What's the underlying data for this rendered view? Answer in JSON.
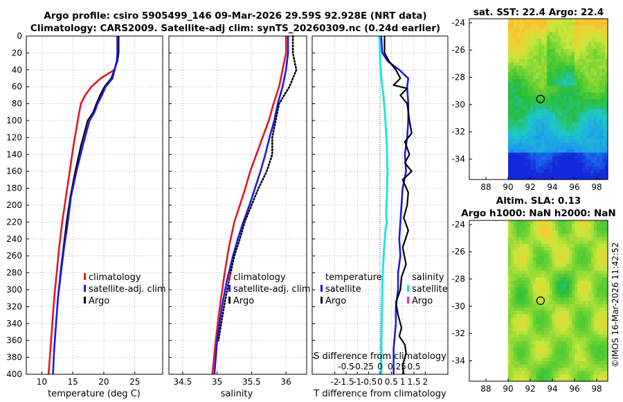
{
  "titles": {
    "line1": "Argo profile: csiro 5905499_146 09-Mar-2026 29.59S 92.928E (NRT data)",
    "line2": "Climatology: CARS2009. Satellite-adj clim: synTS_20260309.nc (0.24d earlier)"
  },
  "watermark": "©IMOS 16-Mar-2026 11:42:52",
  "colors": {
    "climatology": "#e8141e",
    "satellite": "#1a1ae6",
    "argo": "#000000",
    "sat_salinity": "#22e3e3",
    "argo_salinity": "#ee22cc"
  },
  "chart_data": [
    {
      "type": "line",
      "id": "temperature",
      "xlabel": "temperature (deg C)",
      "ylabel": "",
      "xlim": [
        7.5,
        29.5
      ],
      "ylim": [
        0,
        400
      ],
      "xticks": [
        10,
        15,
        20,
        25
      ],
      "yticks": [
        0,
        20,
        40,
        60,
        80,
        100,
        120,
        140,
        160,
        180,
        200,
        220,
        240,
        260,
        280,
        300,
        320,
        340,
        360,
        380,
        400
      ],
      "legend": [
        "climatology",
        "satellite-adj. clim",
        "Argo"
      ],
      "series": [
        {
          "name": "climatology",
          "color": "climatology",
          "dash": false,
          "x": [
            22.2,
            22.2,
            22.1,
            21.7,
            19.5,
            18.0,
            17.0,
            16.3,
            15.8,
            15.1,
            14.5,
            13.9,
            13.3,
            12.8,
            12.4,
            12.0,
            11.7,
            11.4,
            11.1
          ],
          "y": [
            0,
            20,
            30,
            40,
            50,
            60,
            70,
            80,
            100,
            130,
            160,
            190,
            220,
            250,
            280,
            310,
            340,
            370,
            400
          ]
        },
        {
          "name": "satellite-adj. clim",
          "color": "satellite",
          "dash": false,
          "x": [
            22.2,
            22.2,
            22.1,
            21.4,
            20.3,
            19.7,
            19.0,
            18.5,
            17.7,
            16.6,
            15.6,
            14.7,
            14.2,
            13.6,
            13.1,
            12.6,
            12.3,
            12.0,
            11.8
          ],
          "y": [
            0,
            20,
            30,
            50,
            60,
            70,
            80,
            90,
            100,
            130,
            160,
            190,
            220,
            250,
            280,
            310,
            340,
            370,
            400
          ]
        },
        {
          "name": "Argo",
          "color": "argo",
          "dash": false,
          "x": [
            22.4,
            22.4,
            22.2,
            21.2,
            20.1,
            19.4,
            18.8,
            18.3,
            17.4,
            16.3,
            15.4,
            14.6,
            14.0,
            13.5,
            13.0,
            12.6,
            12.3,
            12.0
          ],
          "y": [
            0,
            20,
            30,
            50,
            60,
            70,
            80,
            90,
            100,
            130,
            160,
            190,
            220,
            250,
            280,
            310,
            340,
            370
          ]
        }
      ]
    },
    {
      "type": "line",
      "id": "salinity",
      "xlabel": "salinity",
      "ylabel": "",
      "xlim": [
        34.3,
        36.3
      ],
      "ylim": [
        0,
        400
      ],
      "xticks": [
        34.5,
        35,
        35.5,
        36
      ],
      "xticklabels": [
        "34.5",
        "35",
        "35.5",
        "36"
      ],
      "yticks": [
        0,
        20,
        40,
        60,
        80,
        100,
        120,
        140,
        160,
        180,
        200,
        220,
        240,
        260,
        280,
        300,
        320,
        340,
        360,
        380,
        400
      ],
      "legend": [
        "climatology",
        "satellite-adj. clim",
        "Argo"
      ],
      "series": [
        {
          "name": "climatology",
          "color": "climatology",
          "dash": false,
          "x": [
            36.0,
            36.0,
            35.95,
            35.9,
            35.82,
            35.75,
            35.66,
            35.57,
            35.48,
            35.41,
            35.33,
            35.25,
            35.17,
            35.11,
            35.04,
            34.98,
            34.93
          ],
          "y": [
            0,
            20,
            40,
            60,
            80,
            100,
            120,
            140,
            160,
            180,
            200,
            220,
            250,
            280,
            320,
            360,
            400
          ]
        },
        {
          "name": "satellite-adj. clim",
          "color": "satellite",
          "dash": false,
          "x": [
            36.03,
            36.03,
            36.0,
            35.95,
            35.88,
            35.83,
            35.76,
            35.7,
            35.63,
            35.55,
            35.47,
            35.38,
            35.3,
            35.23,
            35.14,
            35.07,
            35.0,
            34.96
          ],
          "y": [
            0,
            20,
            40,
            60,
            80,
            100,
            120,
            140,
            160,
            180,
            200,
            220,
            240,
            260,
            290,
            320,
            360,
            400
          ]
        },
        {
          "name": "Argo",
          "color": "argo",
          "dash": true,
          "x": [
            36.1,
            36.1,
            36.15,
            36.05,
            35.9,
            35.85,
            35.8,
            35.8,
            35.72,
            35.6,
            35.5,
            35.4,
            35.33,
            35.25,
            35.17,
            35.1,
            35.02
          ],
          "y": [
            0,
            20,
            40,
            60,
            80,
            100,
            120,
            140,
            160,
            180,
            200,
            220,
            240,
            260,
            290,
            320,
            360
          ]
        }
      ]
    },
    {
      "type": "line",
      "id": "difference",
      "xlabel": "T difference from climatology",
      "xlabel2": "S difference from climatology",
      "ylabel": "",
      "xlim": [
        -3,
        3
      ],
      "xlim2": [
        -1,
        1
      ],
      "ylim": [
        0,
        400
      ],
      "xticks": [
        -2,
        -1.5,
        -1,
        -0.5,
        0,
        0.5,
        1,
        1.5,
        2
      ],
      "xticklabels": [
        "-2",
        "-1.5",
        "-1",
        "-0.5",
        "0",
        "0.5",
        "1",
        "1.5",
        "2"
      ],
      "xticks2": [
        -0.5,
        -0.25,
        0,
        0.25,
        0.5
      ],
      "xticklabels2": [
        "-0.5",
        "-0.25",
        "0",
        "0.25",
        "0.5"
      ],
      "yticks": [
        0,
        20,
        40,
        60,
        80,
        100,
        120,
        140,
        160,
        180,
        200,
        220,
        240,
        260,
        280,
        300,
        320,
        340,
        360,
        380,
        400
      ],
      "legend_temperature_title": "temperature",
      "legend_temperature": [
        "satellite",
        "Argo"
      ],
      "legend_salinity_title": "salinity",
      "legend_salinity": [
        "satellite",
        "Argo"
      ],
      "series": [
        {
          "name": "temperature satellite",
          "color": "satellite",
          "dash": false,
          "x": [
            0.05,
            0.1,
            0.35,
            0.85,
            1.25,
            1.2,
            1.25,
            1.25,
            1.2,
            1.1,
            1.15,
            1.0,
            0.95,
            0.9,
            0.85,
            0.9,
            0.8,
            0.8,
            0.7,
            0.7,
            0.6,
            0.6
          ],
          "y": [
            0,
            20,
            30,
            40,
            50,
            60,
            80,
            100,
            120,
            140,
            160,
            180,
            200,
            220,
            240,
            260,
            280,
            300,
            320,
            340,
            370,
            400
          ]
        },
        {
          "name": "temperature Argo",
          "color": "argo",
          "dash": false,
          "x": [
            0.2,
            0.2,
            0.4,
            0.7,
            0.9,
            0.6,
            1.2,
            0.9,
            1.2,
            1.3,
            1.4,
            1.1,
            1.3,
            1.1,
            1.4,
            1.0,
            1.25,
            1.2,
            1.05,
            1.25,
            1.0,
            1.15,
            0.95,
            0.9,
            0.7,
            0.8,
            0.95,
            0.85,
            1.1,
            1.15,
            1.0,
            1.05
          ],
          "y": [
            0,
            20,
            30,
            40,
            50,
            58,
            62,
            70,
            80,
            100,
            115,
            125,
            140,
            150,
            160,
            170,
            185,
            200,
            215,
            230,
            250,
            270,
            285,
            300,
            315,
            330,
            345,
            355,
            365,
            375,
            390,
            400
          ]
        },
        {
          "name": "salinity satellite",
          "color": "sat_salinity",
          "dash": false,
          "x": [
            -0.01,
            0.0,
            0.0,
            0.02,
            0.05,
            0.08,
            0.1,
            0.11,
            0.1,
            0.09,
            0.1,
            0.08,
            0.06,
            0.04,
            0.03,
            0.02,
            0.02
          ],
          "y": [
            0,
            20,
            30,
            50,
            70,
            100,
            130,
            160,
            190,
            210,
            220,
            230,
            250,
            280,
            320,
            360,
            400
          ]
        },
        {
          "name": "salinity Argo",
          "color": "argo_salinity",
          "dash": false,
          "x": [],
          "y": []
        }
      ]
    },
    {
      "type": "heatmap",
      "id": "sst-map",
      "title": "sat. SST: 22.4 Argo: 22.4",
      "xlim": [
        86.5,
        99
      ],
      "ylim": [
        -35.5,
        -23.7
      ],
      "xticks": [
        88,
        90,
        92,
        94,
        96,
        98
      ],
      "yticks": [
        -24,
        -26,
        -28,
        -30,
        -32,
        -34
      ],
      "data_xrange": [
        90,
        99
      ],
      "marker": {
        "lon": 92.928,
        "lat": -29.59
      }
    },
    {
      "type": "heatmap",
      "id": "sla-map",
      "title": "Altim. SLA: 0.13",
      "subtitle": "Argo h1000: NaN h2000: NaN",
      "xlim": [
        86.5,
        99
      ],
      "ylim": [
        -35.5,
        -23.7
      ],
      "xticks": [
        88,
        90,
        92,
        94,
        96,
        98
      ],
      "yticks": [
        -24,
        -26,
        -28,
        -30,
        -32,
        -34
      ],
      "data_xrange": [
        90,
        99
      ],
      "marker": {
        "lon": 92.928,
        "lat": -29.59
      }
    }
  ]
}
